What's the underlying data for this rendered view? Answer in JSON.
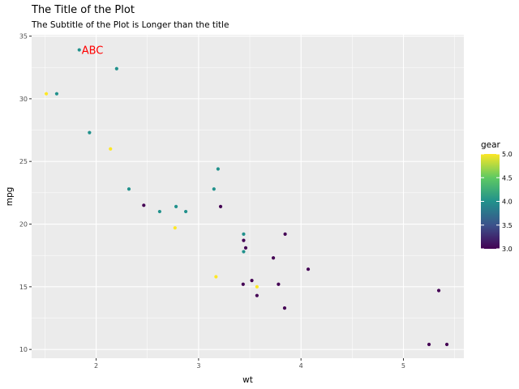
{
  "chart_data": {
    "type": "scatter",
    "title": "The Title of the Plot",
    "subtitle": "The Subtitle of the Plot is Longer than the title",
    "xlabel": "wt",
    "ylabel": "mpg",
    "xlim": [
      1.37,
      5.59
    ],
    "ylim": [
      9.3,
      35.1
    ],
    "xticks": [
      2,
      3,
      4,
      5
    ],
    "yticks": [
      10,
      15,
      20,
      25,
      30,
      35
    ],
    "grid": true,
    "legend": {
      "title": "gear",
      "position": "right",
      "type": "colorbar",
      "range": [
        3.0,
        5.0
      ],
      "ticks": [
        "3.0",
        "3.5",
        "4.0",
        "4.5",
        "5.0"
      ]
    },
    "color_scale": [
      "#440154",
      "#3b528b",
      "#21918c",
      "#5ec962",
      "#fde725"
    ],
    "annotation": {
      "text": "ABC",
      "x": 1.835,
      "y": 33.9,
      "color": "#ff0000"
    },
    "points": [
      {
        "x": 2.62,
        "y": 21.0,
        "gear": 4
      },
      {
        "x": 2.875,
        "y": 21.0,
        "gear": 4
      },
      {
        "x": 2.32,
        "y": 22.8,
        "gear": 4
      },
      {
        "x": 3.215,
        "y": 21.4,
        "gear": 3
      },
      {
        "x": 3.44,
        "y": 18.7,
        "gear": 3
      },
      {
        "x": 3.46,
        "y": 18.1,
        "gear": 3
      },
      {
        "x": 3.57,
        "y": 14.3,
        "gear": 3
      },
      {
        "x": 3.19,
        "y": 24.4,
        "gear": 4
      },
      {
        "x": 3.15,
        "y": 22.8,
        "gear": 4
      },
      {
        "x": 3.44,
        "y": 19.2,
        "gear": 4
      },
      {
        "x": 3.44,
        "y": 17.8,
        "gear": 4
      },
      {
        "x": 4.07,
        "y": 16.4,
        "gear": 3
      },
      {
        "x": 3.73,
        "y": 17.3,
        "gear": 3
      },
      {
        "x": 3.78,
        "y": 15.2,
        "gear": 3
      },
      {
        "x": 5.25,
        "y": 10.4,
        "gear": 3
      },
      {
        "x": 5.424,
        "y": 10.4,
        "gear": 3
      },
      {
        "x": 5.345,
        "y": 14.7,
        "gear": 3
      },
      {
        "x": 2.2,
        "y": 32.4,
        "gear": 4
      },
      {
        "x": 1.615,
        "y": 30.4,
        "gear": 4
      },
      {
        "x": 1.835,
        "y": 33.9,
        "gear": 4
      },
      {
        "x": 2.465,
        "y": 21.5,
        "gear": 3
      },
      {
        "x": 3.52,
        "y": 15.5,
        "gear": 3
      },
      {
        "x": 3.435,
        "y": 15.2,
        "gear": 3
      },
      {
        "x": 3.84,
        "y": 13.3,
        "gear": 3
      },
      {
        "x": 3.845,
        "y": 19.2,
        "gear": 3
      },
      {
        "x": 1.935,
        "y": 27.3,
        "gear": 4
      },
      {
        "x": 2.14,
        "y": 26.0,
        "gear": 5
      },
      {
        "x": 1.513,
        "y": 30.4,
        "gear": 5
      },
      {
        "x": 3.17,
        "y": 15.8,
        "gear": 5
      },
      {
        "x": 2.77,
        "y": 19.7,
        "gear": 5
      },
      {
        "x": 3.57,
        "y": 15.0,
        "gear": 5
      },
      {
        "x": 2.78,
        "y": 21.4,
        "gear": 4
      }
    ]
  }
}
